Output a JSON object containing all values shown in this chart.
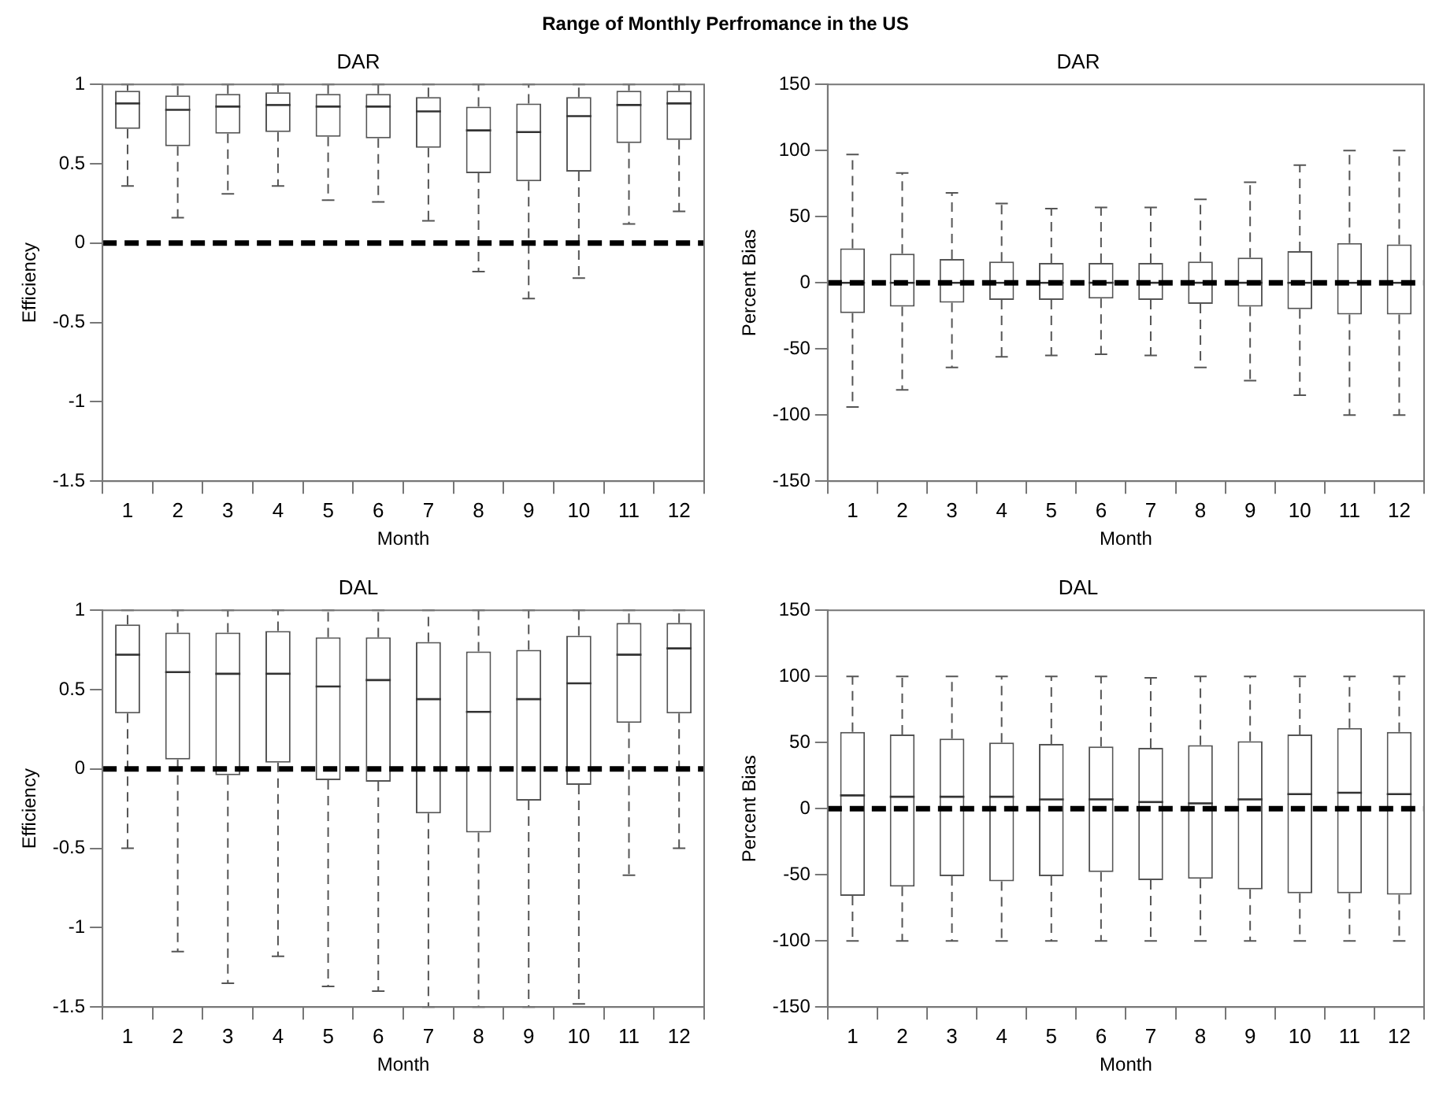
{
  "chart_data": [
    {
      "type": "box",
      "annotations": [
        "Range of Monthly Perfromance in the US"
      ],
      "title": "DAR",
      "xlabel": "Month",
      "ylabel": "Efficiency",
      "categories": [
        "1",
        "2",
        "3",
        "4",
        "5",
        "6",
        "7",
        "8",
        "9",
        "10",
        "11",
        "12"
      ],
      "ylim": [
        -1.5,
        1
      ],
      "yticks": [
        -1.5,
        -1,
        -0.5,
        0,
        0.5,
        1
      ],
      "ref_lines": [
        {
          "axis": "y",
          "value": 0,
          "color": "#000000",
          "line_style": "dashed"
        }
      ],
      "boxes": [
        {
          "low": 0.36,
          "q1": 0.72,
          "median": 0.88,
          "q3": 0.96,
          "high": 1
        },
        {
          "low": 0.16,
          "q1": 0.61,
          "median": 0.84,
          "q3": 0.93,
          "high": 1
        },
        {
          "low": 0.31,
          "q1": 0.69,
          "median": 0.86,
          "q3": 0.94,
          "high": 1
        },
        {
          "low": 0.36,
          "q1": 0.7,
          "median": 0.87,
          "q3": 0.95,
          "high": 1
        },
        {
          "low": 0.27,
          "q1": 0.67,
          "median": 0.86,
          "q3": 0.94,
          "high": 1
        },
        {
          "low": 0.26,
          "q1": 0.66,
          "median": 0.86,
          "q3": 0.94,
          "high": 1
        },
        {
          "low": 0.14,
          "q1": 0.6,
          "median": 0.83,
          "q3": 0.92,
          "high": 1
        },
        {
          "low": -0.18,
          "q1": 0.44,
          "median": 0.71,
          "q3": 0.86,
          "high": 1
        },
        {
          "low": -0.35,
          "q1": 0.39,
          "median": 0.7,
          "q3": 0.88,
          "high": 1
        },
        {
          "low": -0.22,
          "q1": 0.45,
          "median": 0.8,
          "q3": 0.92,
          "high": 1
        },
        {
          "low": 0.12,
          "q1": 0.63,
          "median": 0.87,
          "q3": 0.96,
          "high": 1
        },
        {
          "low": 0.2,
          "q1": 0.65,
          "median": 0.88,
          "q3": 0.96,
          "high": 1
        }
      ]
    },
    {
      "type": "box",
      "title": "DAR",
      "xlabel": "Month",
      "ylabel": "Percent Bias",
      "categories": [
        "1",
        "2",
        "3",
        "4",
        "5",
        "6",
        "7",
        "8",
        "9",
        "10",
        "11",
        "12"
      ],
      "ylim": [
        -150,
        150
      ],
      "yticks": [
        -150,
        -100,
        -50,
        0,
        50,
        100,
        150
      ],
      "ref_lines": [
        {
          "axis": "y",
          "value": 0,
          "color": "#000000",
          "line_style": "dashed"
        }
      ],
      "boxes": [
        {
          "low": -94,
          "q1": -23,
          "median": 0,
          "q3": 26,
          "high": 97
        },
        {
          "low": -81,
          "q1": -18,
          "median": 0,
          "q3": 22,
          "high": 83
        },
        {
          "low": -64,
          "q1": -15,
          "median": 0,
          "q3": 18,
          "high": 68
        },
        {
          "low": -56,
          "q1": -13,
          "median": 0,
          "q3": 16,
          "high": 60
        },
        {
          "low": -55,
          "q1": -13,
          "median": 0,
          "q3": 15,
          "high": 56
        },
        {
          "low": -54,
          "q1": -12,
          "median": 0,
          "q3": 15,
          "high": 57
        },
        {
          "low": -55,
          "q1": -13,
          "median": 0,
          "q3": 15,
          "high": 57
        },
        {
          "low": -64,
          "q1": -16,
          "median": 0,
          "q3": 16,
          "high": 63
        },
        {
          "low": -74,
          "q1": -18,
          "median": 0,
          "q3": 19,
          "high": 76
        },
        {
          "low": -85,
          "q1": -20,
          "median": 0,
          "q3": 24,
          "high": 89
        },
        {
          "low": -100,
          "q1": -24,
          "median": 0,
          "q3": 30,
          "high": 100
        },
        {
          "low": -100,
          "q1": -24,
          "median": 0,
          "q3": 29,
          "high": 100
        }
      ]
    },
    {
      "type": "box",
      "title": "DAL",
      "xlabel": "Month",
      "ylabel": "Efficiency",
      "categories": [
        "1",
        "2",
        "3",
        "4",
        "5",
        "6",
        "7",
        "8",
        "9",
        "10",
        "11",
        "12"
      ],
      "ylim": [
        -1.5,
        1
      ],
      "yticks": [
        -1.5,
        -1,
        -0.5,
        0,
        0.5,
        1
      ],
      "ref_lines": [
        {
          "axis": "y",
          "value": 0,
          "color": "#000000",
          "line_style": "dashed"
        }
      ],
      "boxes": [
        {
          "low": -0.5,
          "q1": 0.35,
          "median": 0.72,
          "q3": 0.91,
          "high": 1
        },
        {
          "low": -1.15,
          "q1": 0.06,
          "median": 0.61,
          "q3": 0.86,
          "high": 1
        },
        {
          "low": -1.35,
          "q1": -0.04,
          "median": 0.6,
          "q3": 0.86,
          "high": 1
        },
        {
          "low": -1.18,
          "q1": 0.04,
          "median": 0.6,
          "q3": 0.87,
          "high": 1
        },
        {
          "low": -1.37,
          "q1": -0.07,
          "median": 0.52,
          "q3": 0.83,
          "high": 1
        },
        {
          "low": -1.4,
          "q1": -0.08,
          "median": 0.56,
          "q3": 0.83,
          "high": 1
        },
        {
          "low": -1.5,
          "q1": -0.28,
          "median": 0.44,
          "q3": 0.8,
          "high": 1
        },
        {
          "low": -1.5,
          "q1": -0.4,
          "median": 0.36,
          "q3": 0.74,
          "high": 1
        },
        {
          "low": -1.5,
          "q1": -0.2,
          "median": 0.44,
          "q3": 0.75,
          "high": 1
        },
        {
          "low": -1.48,
          "q1": -0.1,
          "median": 0.54,
          "q3": 0.84,
          "high": 1
        },
        {
          "low": -0.67,
          "q1": 0.29,
          "median": 0.72,
          "q3": 0.92,
          "high": 1
        },
        {
          "low": -0.5,
          "q1": 0.35,
          "median": 0.76,
          "q3": 0.92,
          "high": 1
        }
      ]
    },
    {
      "type": "box",
      "title": "DAL",
      "xlabel": "Month",
      "ylabel": "Percent Bias",
      "categories": [
        "1",
        "2",
        "3",
        "4",
        "5",
        "6",
        "7",
        "8",
        "9",
        "10",
        "11",
        "12"
      ],
      "ylim": [
        -150,
        150
      ],
      "yticks": [
        -150,
        -100,
        -50,
        0,
        50,
        100,
        150
      ],
      "ref_lines": [
        {
          "axis": "y",
          "value": 0,
          "color": "#000000",
          "line_style": "dashed"
        }
      ],
      "boxes": [
        {
          "low": -100,
          "q1": -66,
          "median": 10,
          "q3": 58,
          "high": 100
        },
        {
          "low": -100,
          "q1": -59,
          "median": 9,
          "q3": 56,
          "high": 100
        },
        {
          "low": -100,
          "q1": -51,
          "median": 9,
          "q3": 53,
          "high": 100
        },
        {
          "low": -100,
          "q1": -55,
          "median": 9,
          "q3": 50,
          "high": 100
        },
        {
          "low": -100,
          "q1": -51,
          "median": 7,
          "q3": 49,
          "high": 100
        },
        {
          "low": -100,
          "q1": -48,
          "median": 7,
          "q3": 47,
          "high": 100
        },
        {
          "low": -100,
          "q1": -54,
          "median": 5,
          "q3": 46,
          "high": 99
        },
        {
          "low": -100,
          "q1": -53,
          "median": 4,
          "q3": 48,
          "high": 100
        },
        {
          "low": -100,
          "q1": -61,
          "median": 7,
          "q3": 51,
          "high": 100
        },
        {
          "low": -100,
          "q1": -64,
          "median": 11,
          "q3": 56,
          "high": 100
        },
        {
          "low": -100,
          "q1": -64,
          "median": 12,
          "q3": 61,
          "high": 100
        },
        {
          "low": -100,
          "q1": -65,
          "median": 11,
          "q3": 58,
          "high": 100
        }
      ]
    }
  ]
}
